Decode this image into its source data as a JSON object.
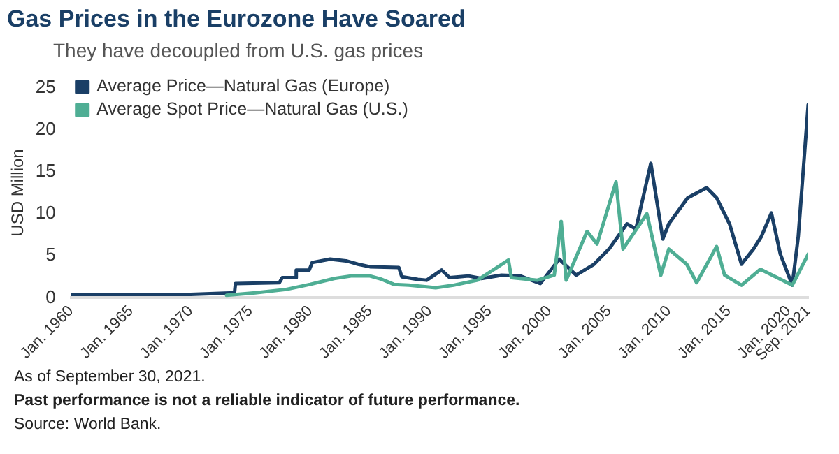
{
  "chart_data": {
    "type": "line",
    "title": "Gas Prices in the Eurozone Have Soared",
    "subtitle": "They have decoupled from U.S. gas prices",
    "ylabel": "USD Million",
    "series": [
      {
        "name": "Average Price—Natural Gas (Europe)",
        "color": "#1a3f66",
        "x": [
          "1960-01",
          "1970-01",
          "1973-09",
          "1973-10",
          "1977-06",
          "1977-09",
          "1978-10",
          "1978-11",
          "1979-12",
          "1980-03",
          "1981-09",
          "1983-01",
          "1984-01",
          "1985-01",
          "1987-06",
          "1987-09",
          "1989-01",
          "1989-10",
          "1991-01",
          "1991-09",
          "1993-04",
          "1994-05",
          "1996-01",
          "1997-08",
          "1999-04",
          "2000-11",
          "2002-04",
          "2003-10",
          "2005-01",
          "2006-07",
          "2007-04",
          "2008-07",
          "2009-07",
          "2010-01",
          "2011-08",
          "2013-03",
          "2014-01",
          "2015-02",
          "2016-02",
          "2017-02",
          "2017-10",
          "2018-08",
          "2019-05",
          "2020-05",
          "2020-11",
          "2021-09"
        ],
        "values": [
          0.4,
          0.4,
          0.6,
          1.7,
          1.8,
          2.4,
          2.4,
          3.3,
          3.3,
          4.2,
          4.6,
          4.4,
          4.0,
          3.7,
          3.6,
          2.5,
          2.2,
          2.1,
          3.3,
          2.4,
          2.6,
          2.3,
          2.7,
          2.6,
          1.7,
          4.6,
          2.7,
          4.0,
          5.8,
          8.8,
          8.2,
          16,
          7.0,
          8.8,
          11.9,
          13.1,
          11.9,
          8.8,
          4.0,
          5.8,
          7.3,
          10.1,
          5.2,
          1.5,
          7.3,
          23
        ]
      },
      {
        "name": "Average Spot Price—Natural Gas (U.S.)",
        "color": "#4fae94",
        "x": [
          "1973-01",
          "1975-06",
          "1978-01",
          "1980-01",
          "1982-01",
          "1983-06",
          "1985-01",
          "1986-01",
          "1987-01",
          "1988-04",
          "1990-07",
          "1992-01",
          "1994-01",
          "1996-08",
          "1996-11",
          "1999-01",
          "2000-06",
          "2001-01",
          "2001-06",
          "2003-03",
          "2004-01",
          "2005-08",
          "2006-03",
          "2008-03",
          "2009-05",
          "2010-01",
          "2011-07",
          "2012-05",
          "2014-01",
          "2014-09",
          "2016-02",
          "2017-09",
          "2020-05",
          "2021-09"
        ],
        "values": [
          0.3,
          0.6,
          1.0,
          1.6,
          2.3,
          2.6,
          2.6,
          2.2,
          1.6,
          1.5,
          1.2,
          1.5,
          2.1,
          4.5,
          2.4,
          2.1,
          2.7,
          9.1,
          2.1,
          7.9,
          6.4,
          13.8,
          5.8,
          10,
          2.7,
          5.8,
          4.0,
          1.8,
          6.1,
          2.7,
          1.5,
          3.4,
          1.5,
          5.2
        ]
      }
    ],
    "xlim": [
      "1960-01",
      "2021-09"
    ],
    "xticks": [
      {
        "value": "1960-01",
        "label": "Jan. 1960"
      },
      {
        "value": "1965-01",
        "label": "Jan. 1965"
      },
      {
        "value": "1970-01",
        "label": "Jan. 1970"
      },
      {
        "value": "1975-01",
        "label": "Jan. 1975"
      },
      {
        "value": "1980-01",
        "label": "Jan. 1980"
      },
      {
        "value": "1985-01",
        "label": "Jan. 1985"
      },
      {
        "value": "1990-01",
        "label": "Jan. 1990"
      },
      {
        "value": "1995-01",
        "label": "Jan. 1995"
      },
      {
        "value": "2000-01",
        "label": "Jan. 2000"
      },
      {
        "value": "2005-01",
        "label": "Jan. 2005"
      },
      {
        "value": "2010-01",
        "label": "Jan. 2010"
      },
      {
        "value": "2015-01",
        "label": "Jan. 2015"
      },
      {
        "value": "2020-01",
        "label": "Jan. 2020"
      },
      {
        "value": "2021-09",
        "label": "Sep. 2021"
      }
    ],
    "ylim": [
      0,
      25
    ],
    "yticks": [
      0,
      5,
      10,
      15,
      20,
      25
    ],
    "legend": "top left",
    "marker": "none",
    "line_style": "solid",
    "annotations": [
      "As of September 30, 2021.",
      "Past performance is not a reliable indicator of future performance.",
      "Source: World Bank."
    ]
  }
}
